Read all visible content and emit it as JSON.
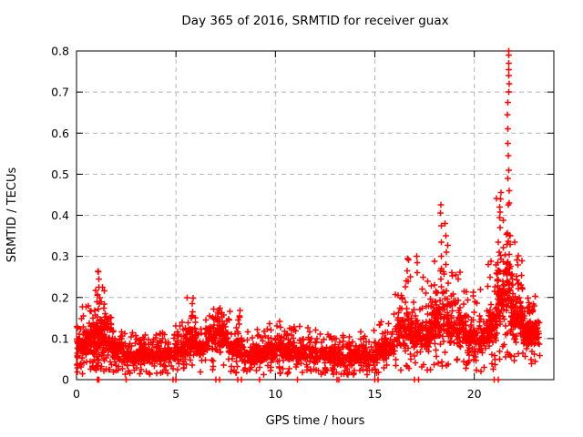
{
  "window": {
    "background": "#ffffff"
  },
  "chart_data": {
    "type": "scatter",
    "title": "Day 365 of 2016, SRMTID for receiver guax",
    "xlabel": "GPS time / hours",
    "ylabel": "SRMTID / TECUs",
    "xlim": [
      0,
      24
    ],
    "ylim": [
      0,
      0.8
    ],
    "xtick_values": [
      0,
      5,
      10,
      15,
      20
    ],
    "xtick_labels": [
      "0",
      "5",
      "10",
      "15",
      "20"
    ],
    "ytick_values": [
      0,
      0.1,
      0.2,
      0.3,
      0.4,
      0.5,
      0.6,
      0.7,
      0.8
    ],
    "ytick_labels": [
      "0",
      "0.1",
      "0.2",
      "0.3",
      "0.4",
      "0.5",
      "0.6",
      "0.7",
      "0.8"
    ],
    "grid": true,
    "legend": "none",
    "marker": "plus",
    "marker_color": "#ff0000",
    "grid_color": "#b4b4b4",
    "border_color": "#000000",
    "seed": 1365,
    "cloud_segments": [
      {
        "h0": 0.0,
        "h1": 0.35,
        "n": 60,
        "lo": 0.04,
        "hi": 0.12,
        "tail": 0.19
      },
      {
        "h0": 0.35,
        "h1": 0.75,
        "n": 70,
        "lo": 0.05,
        "hi": 0.13,
        "tail": 0.18
      },
      {
        "h0": 0.75,
        "h1": 1.05,
        "n": 70,
        "lo": 0.05,
        "hi": 0.15,
        "tail": 0.22
      },
      {
        "h0": 1.05,
        "h1": 1.45,
        "n": 90,
        "lo": 0.05,
        "hi": 0.17,
        "tail": 0.27
      },
      {
        "h0": 1.45,
        "h1": 1.8,
        "n": 60,
        "lo": 0.05,
        "hi": 0.12,
        "tail": 0.16
      },
      {
        "h0": 1.8,
        "h1": 2.3,
        "n": 60,
        "lo": 0.04,
        "hi": 0.1,
        "tail": 0.13
      },
      {
        "h0": 2.3,
        "h1": 3.1,
        "n": 90,
        "lo": 0.03,
        "hi": 0.08,
        "tail": 0.115
      },
      {
        "h0": 3.1,
        "h1": 4.0,
        "n": 100,
        "lo": 0.03,
        "hi": 0.085,
        "tail": 0.12
      },
      {
        "h0": 4.0,
        "h1": 4.9,
        "n": 100,
        "lo": 0.035,
        "hi": 0.09,
        "tail": 0.12
      },
      {
        "h0": 4.9,
        "h1": 5.55,
        "n": 80,
        "lo": 0.04,
        "hi": 0.1,
        "tail": 0.14
      },
      {
        "h0": 5.55,
        "h1": 6.0,
        "n": 70,
        "lo": 0.05,
        "hi": 0.12,
        "tail": 0.2
      },
      {
        "h0": 6.0,
        "h1": 6.6,
        "n": 70,
        "lo": 0.05,
        "hi": 0.11,
        "tail": 0.15
      },
      {
        "h0": 6.6,
        "h1": 7.6,
        "n": 120,
        "lo": 0.06,
        "hi": 0.14,
        "tail": 0.175
      },
      {
        "h0": 7.6,
        "h1": 8.45,
        "n": 90,
        "lo": 0.04,
        "hi": 0.11,
        "tail": 0.17
      },
      {
        "h0": 8.45,
        "h1": 9.5,
        "n": 110,
        "lo": 0.03,
        "hi": 0.09,
        "tail": 0.13
      },
      {
        "h0": 9.5,
        "h1": 10.6,
        "n": 120,
        "lo": 0.04,
        "hi": 0.1,
        "tail": 0.145
      },
      {
        "h0": 10.6,
        "h1": 11.7,
        "n": 120,
        "lo": 0.04,
        "hi": 0.095,
        "tail": 0.13
      },
      {
        "h0": 11.7,
        "h1": 13.0,
        "n": 140,
        "lo": 0.035,
        "hi": 0.09,
        "tail": 0.125
      },
      {
        "h0": 13.0,
        "h1": 14.2,
        "n": 120,
        "lo": 0.03,
        "hi": 0.08,
        "tail": 0.11
      },
      {
        "h0": 14.2,
        "h1": 15.1,
        "n": 90,
        "lo": 0.03,
        "hi": 0.08,
        "tail": 0.12
      },
      {
        "h0": 15.1,
        "h1": 16.0,
        "n": 100,
        "lo": 0.045,
        "hi": 0.11,
        "tail": 0.16
      },
      {
        "h0": 16.0,
        "h1": 16.9,
        "n": 110,
        "lo": 0.06,
        "hi": 0.17,
        "tail": 0.3
      },
      {
        "h0": 16.9,
        "h1": 17.8,
        "n": 110,
        "lo": 0.05,
        "hi": 0.16,
        "tail": 0.26
      },
      {
        "h0": 17.8,
        "h1": 18.75,
        "n": 130,
        "lo": 0.08,
        "hi": 0.21,
        "tail": 0.35
      },
      {
        "h0": 18.75,
        "h1": 19.6,
        "n": 110,
        "lo": 0.07,
        "hi": 0.18,
        "tail": 0.27
      },
      {
        "h0": 19.6,
        "h1": 20.6,
        "n": 110,
        "lo": 0.05,
        "hi": 0.14,
        "tail": 0.22
      },
      {
        "h0": 20.6,
        "h1": 21.1,
        "n": 70,
        "lo": 0.07,
        "hi": 0.19,
        "tail": 0.3
      },
      {
        "h0": 21.1,
        "h1": 21.6,
        "n": 90,
        "lo": 0.1,
        "hi": 0.3,
        "tail": 0.46
      },
      {
        "h0": 21.6,
        "h1": 21.85,
        "n": 45,
        "lo": 0.13,
        "hi": 0.35,
        "tail": 0.52
      },
      {
        "h0": 21.85,
        "h1": 22.45,
        "n": 100,
        "lo": 0.08,
        "hi": 0.22,
        "tail": 0.34
      },
      {
        "h0": 22.45,
        "h1": 23.05,
        "n": 110,
        "lo": 0.07,
        "hi": 0.16,
        "tail": 0.22
      },
      {
        "h0": 23.05,
        "h1": 23.3,
        "n": 25,
        "lo": 0.08,
        "hi": 0.13,
        "tail": 0.16
      }
    ],
    "spike_columns": [
      {
        "hour": 1.1,
        "values": [
          0.185,
          0.205,
          0.225,
          0.245,
          0.263
        ]
      },
      {
        "hour": 5.82,
        "values": [
          0.15,
          0.165,
          0.185,
          0.198
        ]
      },
      {
        "hour": 7.1,
        "values": [
          0.15,
          0.16,
          0.17
        ]
      },
      {
        "hour": 8.2,
        "values": [
          0.135,
          0.155,
          0.168
        ]
      },
      {
        "hour": 16.62,
        "values": [
          0.24,
          0.265,
          0.295
        ]
      },
      {
        "hour": 17.1,
        "values": [
          0.26,
          0.285,
          0.3
        ]
      },
      {
        "hour": 18.32,
        "values": [
          0.245,
          0.27,
          0.3,
          0.335,
          0.375,
          0.405,
          0.425
        ]
      },
      {
        "hour": 18.55,
        "values": [
          0.28,
          0.31,
          0.35,
          0.38
        ]
      },
      {
        "hour": 21.3,
        "values": [
          0.37,
          0.395,
          0.42,
          0.44,
          0.455
        ]
      },
      {
        "hour": 21.71,
        "values": [
          0.49,
          0.51,
          0.545,
          0.575,
          0.61,
          0.645,
          0.675,
          0.7,
          0.72,
          0.74,
          0.755,
          0.77,
          0.79,
          0.8
        ]
      },
      {
        "hour": 21.78,
        "values": [
          0.43,
          0.46
        ]
      }
    ],
    "zero_point_hours": [
      1.05,
      1.12,
      2.5,
      4.85,
      5.0,
      7.0,
      7.2,
      8.1,
      8.3,
      9.2,
      11.1,
      13.1,
      13.2,
      15.0,
      15.15,
      17.0,
      17.2,
      21.0,
      21.2
    ]
  }
}
